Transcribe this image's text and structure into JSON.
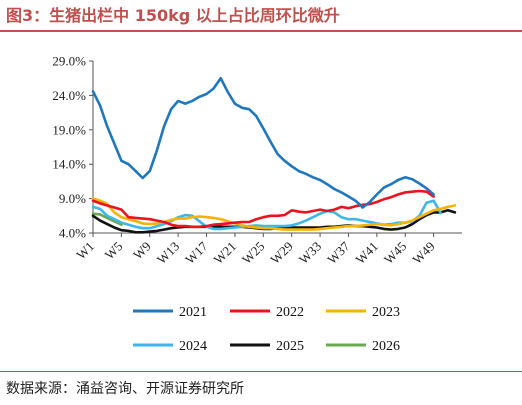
{
  "title": "图3：生猪出栏中 150kg 以上占比周环比微升",
  "source": "数据来源：涌益咨询、开源证券研究所",
  "chart_data": {
    "type": "line",
    "ylim": [
      4.0,
      29.0
    ],
    "yticks": [
      "29.0%",
      "24.0%",
      "19.0%",
      "14.0%",
      "9.0%",
      "4.0%"
    ],
    "ytick_values": [
      29,
      24,
      19,
      14,
      9,
      4
    ],
    "xticks": [
      "W1",
      "W5",
      "W9",
      "W13",
      "W17",
      "W21",
      "W25",
      "W29",
      "W33",
      "W37",
      "W41",
      "W45",
      "W49"
    ],
    "xtick_weeks": [
      1,
      5,
      9,
      13,
      17,
      21,
      25,
      29,
      33,
      37,
      41,
      45,
      49
    ],
    "xlim": [
      1,
      53
    ],
    "grid": false,
    "legend_position": "bottom",
    "series": [
      {
        "name": "2021",
        "color": "#1f77c0",
        "values": [
          [
            1,
            24.6
          ],
          [
            2,
            22.5
          ],
          [
            3,
            19.5
          ],
          [
            4,
            17
          ],
          [
            5,
            14.5
          ],
          [
            6,
            14
          ],
          [
            7,
            13
          ],
          [
            8,
            12
          ],
          [
            9,
            13
          ],
          [
            10,
            16
          ],
          [
            11,
            19.5
          ],
          [
            12,
            22
          ],
          [
            13,
            23.2
          ],
          [
            14,
            22.8
          ],
          [
            15,
            23.2
          ],
          [
            16,
            23.8
          ],
          [
            17,
            24.2
          ],
          [
            18,
            25
          ],
          [
            19,
            26.5
          ],
          [
            20,
            24.5
          ],
          [
            21,
            22.8
          ],
          [
            22,
            22.2
          ],
          [
            23,
            22
          ],
          [
            24,
            21
          ],
          [
            25,
            19.2
          ],
          [
            26,
            17.3
          ],
          [
            27,
            15.5
          ],
          [
            28,
            14.5
          ],
          [
            29,
            13.7
          ],
          [
            30,
            13
          ],
          [
            31,
            12.6
          ],
          [
            32,
            12.1
          ],
          [
            33,
            11.7
          ],
          [
            34,
            11.1
          ],
          [
            35,
            10.4
          ],
          [
            36,
            9.9
          ],
          [
            37,
            9.3
          ],
          [
            38,
            8.7
          ],
          [
            39,
            7.7
          ],
          [
            40,
            8.5
          ],
          [
            41,
            9.6
          ],
          [
            42,
            10.6
          ],
          [
            43,
            11.1
          ],
          [
            44,
            11.7
          ],
          [
            45,
            12.1
          ],
          [
            46,
            11.8
          ],
          [
            47,
            11.2
          ],
          [
            48,
            10.5
          ],
          [
            49,
            9.6
          ]
        ]
      },
      {
        "name": "2022",
        "color": "#e8141e",
        "values": [
          [
            1,
            8.7
          ],
          [
            2,
            8.3
          ],
          [
            3,
            8
          ],
          [
            4,
            7.7
          ],
          [
            5,
            7.4
          ],
          [
            6,
            6.3
          ],
          [
            7,
            6.2
          ],
          [
            8,
            6.1
          ],
          [
            9,
            6
          ],
          [
            10,
            5.8
          ],
          [
            11,
            5.6
          ],
          [
            12,
            5.2
          ],
          [
            13,
            5
          ],
          [
            14,
            5
          ],
          [
            15,
            4.9
          ],
          [
            16,
            4.9
          ],
          [
            17,
            5
          ],
          [
            18,
            5.2
          ],
          [
            19,
            5.3
          ],
          [
            20,
            5.4
          ],
          [
            21,
            5.5
          ],
          [
            22,
            5.6
          ],
          [
            23,
            5.6
          ],
          [
            24,
            6
          ],
          [
            25,
            6.3
          ],
          [
            26,
            6.5
          ],
          [
            27,
            6.5
          ],
          [
            28,
            6.6
          ],
          [
            29,
            7.3
          ],
          [
            30,
            7.1
          ],
          [
            31,
            7
          ],
          [
            32,
            7.2
          ],
          [
            33,
            7.4
          ],
          [
            34,
            7.2
          ],
          [
            35,
            7.4
          ],
          [
            36,
            7.8
          ],
          [
            37,
            7.6
          ],
          [
            38,
            7.9
          ],
          [
            39,
            8.1
          ],
          [
            40,
            8.2
          ],
          [
            41,
            8.5
          ],
          [
            42,
            8.9
          ],
          [
            43,
            9.2
          ],
          [
            44,
            9.6
          ],
          [
            45,
            9.9
          ],
          [
            46,
            10
          ],
          [
            47,
            10.1
          ],
          [
            48,
            10
          ],
          [
            49,
            9.3
          ]
        ]
      },
      {
        "name": "2023",
        "color": "#f4b400",
        "values": [
          [
            1,
            9
          ],
          [
            2,
            8.7
          ],
          [
            3,
            8.2
          ],
          [
            4,
            7
          ],
          [
            5,
            6.3
          ],
          [
            6,
            6
          ],
          [
            7,
            5.7
          ],
          [
            8,
            5.4
          ],
          [
            9,
            5.3
          ],
          [
            10,
            5.4
          ],
          [
            11,
            5.6
          ],
          [
            12,
            5.9
          ],
          [
            13,
            6.1
          ],
          [
            14,
            6.1
          ],
          [
            15,
            6.3
          ],
          [
            16,
            6.4
          ],
          [
            17,
            6.3
          ],
          [
            18,
            6.2
          ],
          [
            19,
            6
          ],
          [
            20,
            5.7
          ],
          [
            21,
            5.4
          ],
          [
            22,
            5.1
          ],
          [
            23,
            4.9
          ],
          [
            24,
            4.8
          ],
          [
            25,
            4.7
          ],
          [
            26,
            4.7
          ],
          [
            27,
            4.6
          ],
          [
            28,
            4.5
          ],
          [
            29,
            4.5
          ],
          [
            30,
            4.5
          ],
          [
            31,
            4.5
          ],
          [
            32,
            4.5
          ],
          [
            33,
            4.6
          ],
          [
            34,
            4.7
          ],
          [
            35,
            4.8
          ],
          [
            36,
            4.9
          ],
          [
            37,
            5
          ],
          [
            38,
            5
          ],
          [
            39,
            5.1
          ],
          [
            40,
            5.2
          ],
          [
            41,
            5.3
          ],
          [
            42,
            5.2
          ],
          [
            43,
            5.1
          ],
          [
            44,
            5.3
          ],
          [
            45,
            5.5
          ],
          [
            46,
            5.8
          ],
          [
            47,
            6.3
          ],
          [
            48,
            6.8
          ],
          [
            49,
            7.3
          ],
          [
            50,
            7.5
          ],
          [
            51,
            7.8
          ],
          [
            52,
            8
          ]
        ]
      },
      {
        "name": "2024",
        "color": "#3eb6e8",
        "values": [
          [
            1,
            7.8
          ],
          [
            2,
            7.5
          ],
          [
            3,
            6.5
          ],
          [
            4,
            6
          ],
          [
            5,
            5.5
          ],
          [
            6,
            5.2
          ],
          [
            7,
            4.9
          ],
          [
            8,
            4.7
          ],
          [
            9,
            4.7
          ],
          [
            10,
            5
          ],
          [
            11,
            5.3
          ],
          [
            12,
            5.7
          ],
          [
            13,
            6.3
          ],
          [
            14,
            6.6
          ],
          [
            15,
            6.5
          ],
          [
            16,
            5.7
          ],
          [
            17,
            4.9
          ],
          [
            18,
            4.6
          ],
          [
            19,
            4.6
          ],
          [
            20,
            4.7
          ],
          [
            21,
            4.8
          ],
          [
            22,
            4.9
          ],
          [
            23,
            5
          ],
          [
            24,
            5.1
          ],
          [
            25,
            5
          ],
          [
            26,
            5
          ],
          [
            27,
            5
          ],
          [
            28,
            5
          ],
          [
            29,
            5.1
          ],
          [
            30,
            5.4
          ],
          [
            31,
            5.8
          ],
          [
            32,
            6.3
          ],
          [
            33,
            6.8
          ],
          [
            34,
            7.2
          ],
          [
            35,
            7
          ],
          [
            36,
            6.3
          ],
          [
            37,
            6
          ],
          [
            38,
            6
          ],
          [
            39,
            5.8
          ],
          [
            40,
            5.6
          ],
          [
            41,
            5.4
          ],
          [
            42,
            5.2
          ],
          [
            43,
            5.3
          ],
          [
            44,
            5.5
          ],
          [
            45,
            5.5
          ],
          [
            46,
            5.7
          ],
          [
            47,
            6.5
          ],
          [
            48,
            8.4
          ],
          [
            49,
            8.7
          ],
          [
            50,
            6.9
          ]
        ]
      },
      {
        "name": "2025",
        "color": "#111111",
        "values": [
          [
            1,
            6.5
          ],
          [
            2,
            5.8
          ],
          [
            3,
            5.3
          ],
          [
            4,
            4.8
          ],
          [
            5,
            4.4
          ],
          [
            6,
            4.3
          ],
          [
            7,
            4.1
          ],
          [
            8,
            4.1
          ],
          [
            9,
            4.2
          ],
          [
            10,
            4.3
          ],
          [
            11,
            4.5
          ],
          [
            12,
            4.7
          ],
          [
            13,
            4.8
          ],
          [
            14,
            4.9
          ],
          [
            15,
            4.9
          ],
          [
            16,
            4.9
          ],
          [
            17,
            4.9
          ],
          [
            18,
            4.9
          ],
          [
            19,
            4.9
          ],
          [
            20,
            4.9
          ],
          [
            21,
            4.9
          ],
          [
            22,
            4.9
          ],
          [
            23,
            4.8
          ],
          [
            24,
            4.7
          ],
          [
            25,
            4.6
          ],
          [
            26,
            4.6
          ],
          [
            27,
            4.7
          ],
          [
            28,
            4.8
          ],
          [
            29,
            4.8
          ],
          [
            30,
            4.8
          ],
          [
            31,
            4.8
          ],
          [
            32,
            4.8
          ],
          [
            33,
            4.8
          ],
          [
            34,
            4.9
          ],
          [
            35,
            4.9
          ],
          [
            36,
            5
          ],
          [
            37,
            5.1
          ],
          [
            38,
            5
          ],
          [
            39,
            5
          ],
          [
            40,
            4.9
          ],
          [
            41,
            4.8
          ],
          [
            42,
            4.6
          ],
          [
            43,
            4.5
          ],
          [
            44,
            4.6
          ],
          [
            45,
            4.8
          ],
          [
            46,
            5.3
          ],
          [
            47,
            6
          ],
          [
            48,
            6.6
          ],
          [
            49,
            7
          ],
          [
            50,
            7
          ],
          [
            51,
            7.3
          ],
          [
            52,
            7
          ]
        ]
      },
      {
        "name": "2026",
        "color": "#6aa84f",
        "values": [
          [
            1,
            6.8
          ],
          [
            2,
            6.7
          ],
          [
            3,
            6.2
          ],
          [
            4,
            5.7
          ],
          [
            5,
            5.2
          ]
        ]
      }
    ]
  }
}
